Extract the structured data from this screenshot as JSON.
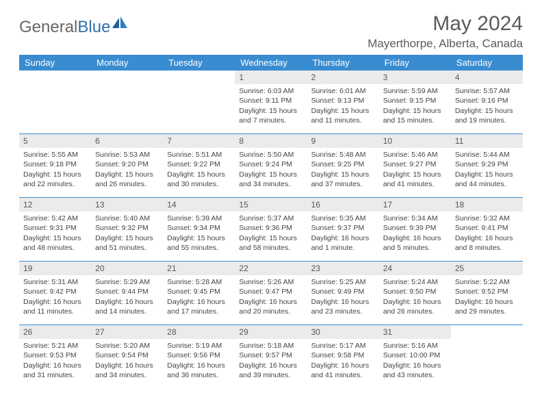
{
  "logo": {
    "general": "General",
    "blue": "Blue"
  },
  "header": {
    "month": "May 2024",
    "location": "Mayerthorpe, Alberta, Canada"
  },
  "colors": {
    "header_bg": "#3a8cd0",
    "header_text": "#ffffff",
    "daynum_bg": "#ebebeb",
    "week_border": "#3a8cd0",
    "logo_blue": "#2f6fae",
    "background": "#ffffff"
  },
  "dayNames": [
    "Sunday",
    "Monday",
    "Tuesday",
    "Wednesday",
    "Thursday",
    "Friday",
    "Saturday"
  ],
  "weeks": [
    [
      null,
      null,
      null,
      {
        "n": "1",
        "sunrise": "6:03 AM",
        "sunset": "9:11 PM",
        "daylight": "15 hours and 7 minutes."
      },
      {
        "n": "2",
        "sunrise": "6:01 AM",
        "sunset": "9:13 PM",
        "daylight": "15 hours and 11 minutes."
      },
      {
        "n": "3",
        "sunrise": "5:59 AM",
        "sunset": "9:15 PM",
        "daylight": "15 hours and 15 minutes."
      },
      {
        "n": "4",
        "sunrise": "5:57 AM",
        "sunset": "9:16 PM",
        "daylight": "15 hours and 19 minutes."
      }
    ],
    [
      {
        "n": "5",
        "sunrise": "5:55 AM",
        "sunset": "9:18 PM",
        "daylight": "15 hours and 22 minutes."
      },
      {
        "n": "6",
        "sunrise": "5:53 AM",
        "sunset": "9:20 PM",
        "daylight": "15 hours and 26 minutes."
      },
      {
        "n": "7",
        "sunrise": "5:51 AM",
        "sunset": "9:22 PM",
        "daylight": "15 hours and 30 minutes."
      },
      {
        "n": "8",
        "sunrise": "5:50 AM",
        "sunset": "9:24 PM",
        "daylight": "15 hours and 34 minutes."
      },
      {
        "n": "9",
        "sunrise": "5:48 AM",
        "sunset": "9:25 PM",
        "daylight": "15 hours and 37 minutes."
      },
      {
        "n": "10",
        "sunrise": "5:46 AM",
        "sunset": "9:27 PM",
        "daylight": "15 hours and 41 minutes."
      },
      {
        "n": "11",
        "sunrise": "5:44 AM",
        "sunset": "9:29 PM",
        "daylight": "15 hours and 44 minutes."
      }
    ],
    [
      {
        "n": "12",
        "sunrise": "5:42 AM",
        "sunset": "9:31 PM",
        "daylight": "15 hours and 48 minutes."
      },
      {
        "n": "13",
        "sunrise": "5:40 AM",
        "sunset": "9:32 PM",
        "daylight": "15 hours and 51 minutes."
      },
      {
        "n": "14",
        "sunrise": "5:39 AM",
        "sunset": "9:34 PM",
        "daylight": "15 hours and 55 minutes."
      },
      {
        "n": "15",
        "sunrise": "5:37 AM",
        "sunset": "9:36 PM",
        "daylight": "15 hours and 58 minutes."
      },
      {
        "n": "16",
        "sunrise": "5:35 AM",
        "sunset": "9:37 PM",
        "daylight": "16 hours and 1 minute."
      },
      {
        "n": "17",
        "sunrise": "5:34 AM",
        "sunset": "9:39 PM",
        "daylight": "16 hours and 5 minutes."
      },
      {
        "n": "18",
        "sunrise": "5:32 AM",
        "sunset": "9:41 PM",
        "daylight": "16 hours and 8 minutes."
      }
    ],
    [
      {
        "n": "19",
        "sunrise": "5:31 AM",
        "sunset": "9:42 PM",
        "daylight": "16 hours and 11 minutes."
      },
      {
        "n": "20",
        "sunrise": "5:29 AM",
        "sunset": "9:44 PM",
        "daylight": "16 hours and 14 minutes."
      },
      {
        "n": "21",
        "sunrise": "5:28 AM",
        "sunset": "9:45 PM",
        "daylight": "16 hours and 17 minutes."
      },
      {
        "n": "22",
        "sunrise": "5:26 AM",
        "sunset": "9:47 PM",
        "daylight": "16 hours and 20 minutes."
      },
      {
        "n": "23",
        "sunrise": "5:25 AM",
        "sunset": "9:49 PM",
        "daylight": "16 hours and 23 minutes."
      },
      {
        "n": "24",
        "sunrise": "5:24 AM",
        "sunset": "9:50 PM",
        "daylight": "16 hours and 26 minutes."
      },
      {
        "n": "25",
        "sunrise": "5:22 AM",
        "sunset": "9:52 PM",
        "daylight": "16 hours and 29 minutes."
      }
    ],
    [
      {
        "n": "26",
        "sunrise": "5:21 AM",
        "sunset": "9:53 PM",
        "daylight": "16 hours and 31 minutes."
      },
      {
        "n": "27",
        "sunrise": "5:20 AM",
        "sunset": "9:54 PM",
        "daylight": "16 hours and 34 minutes."
      },
      {
        "n": "28",
        "sunrise": "5:19 AM",
        "sunset": "9:56 PM",
        "daylight": "16 hours and 36 minutes."
      },
      {
        "n": "29",
        "sunrise": "5:18 AM",
        "sunset": "9:57 PM",
        "daylight": "16 hours and 39 minutes."
      },
      {
        "n": "30",
        "sunrise": "5:17 AM",
        "sunset": "9:58 PM",
        "daylight": "16 hours and 41 minutes."
      },
      {
        "n": "31",
        "sunrise": "5:16 AM",
        "sunset": "10:00 PM",
        "daylight": "16 hours and 43 minutes."
      },
      null
    ]
  ],
  "labels": {
    "sunrise": "Sunrise: ",
    "sunset": "Sunset: ",
    "daylight": "Daylight: "
  }
}
